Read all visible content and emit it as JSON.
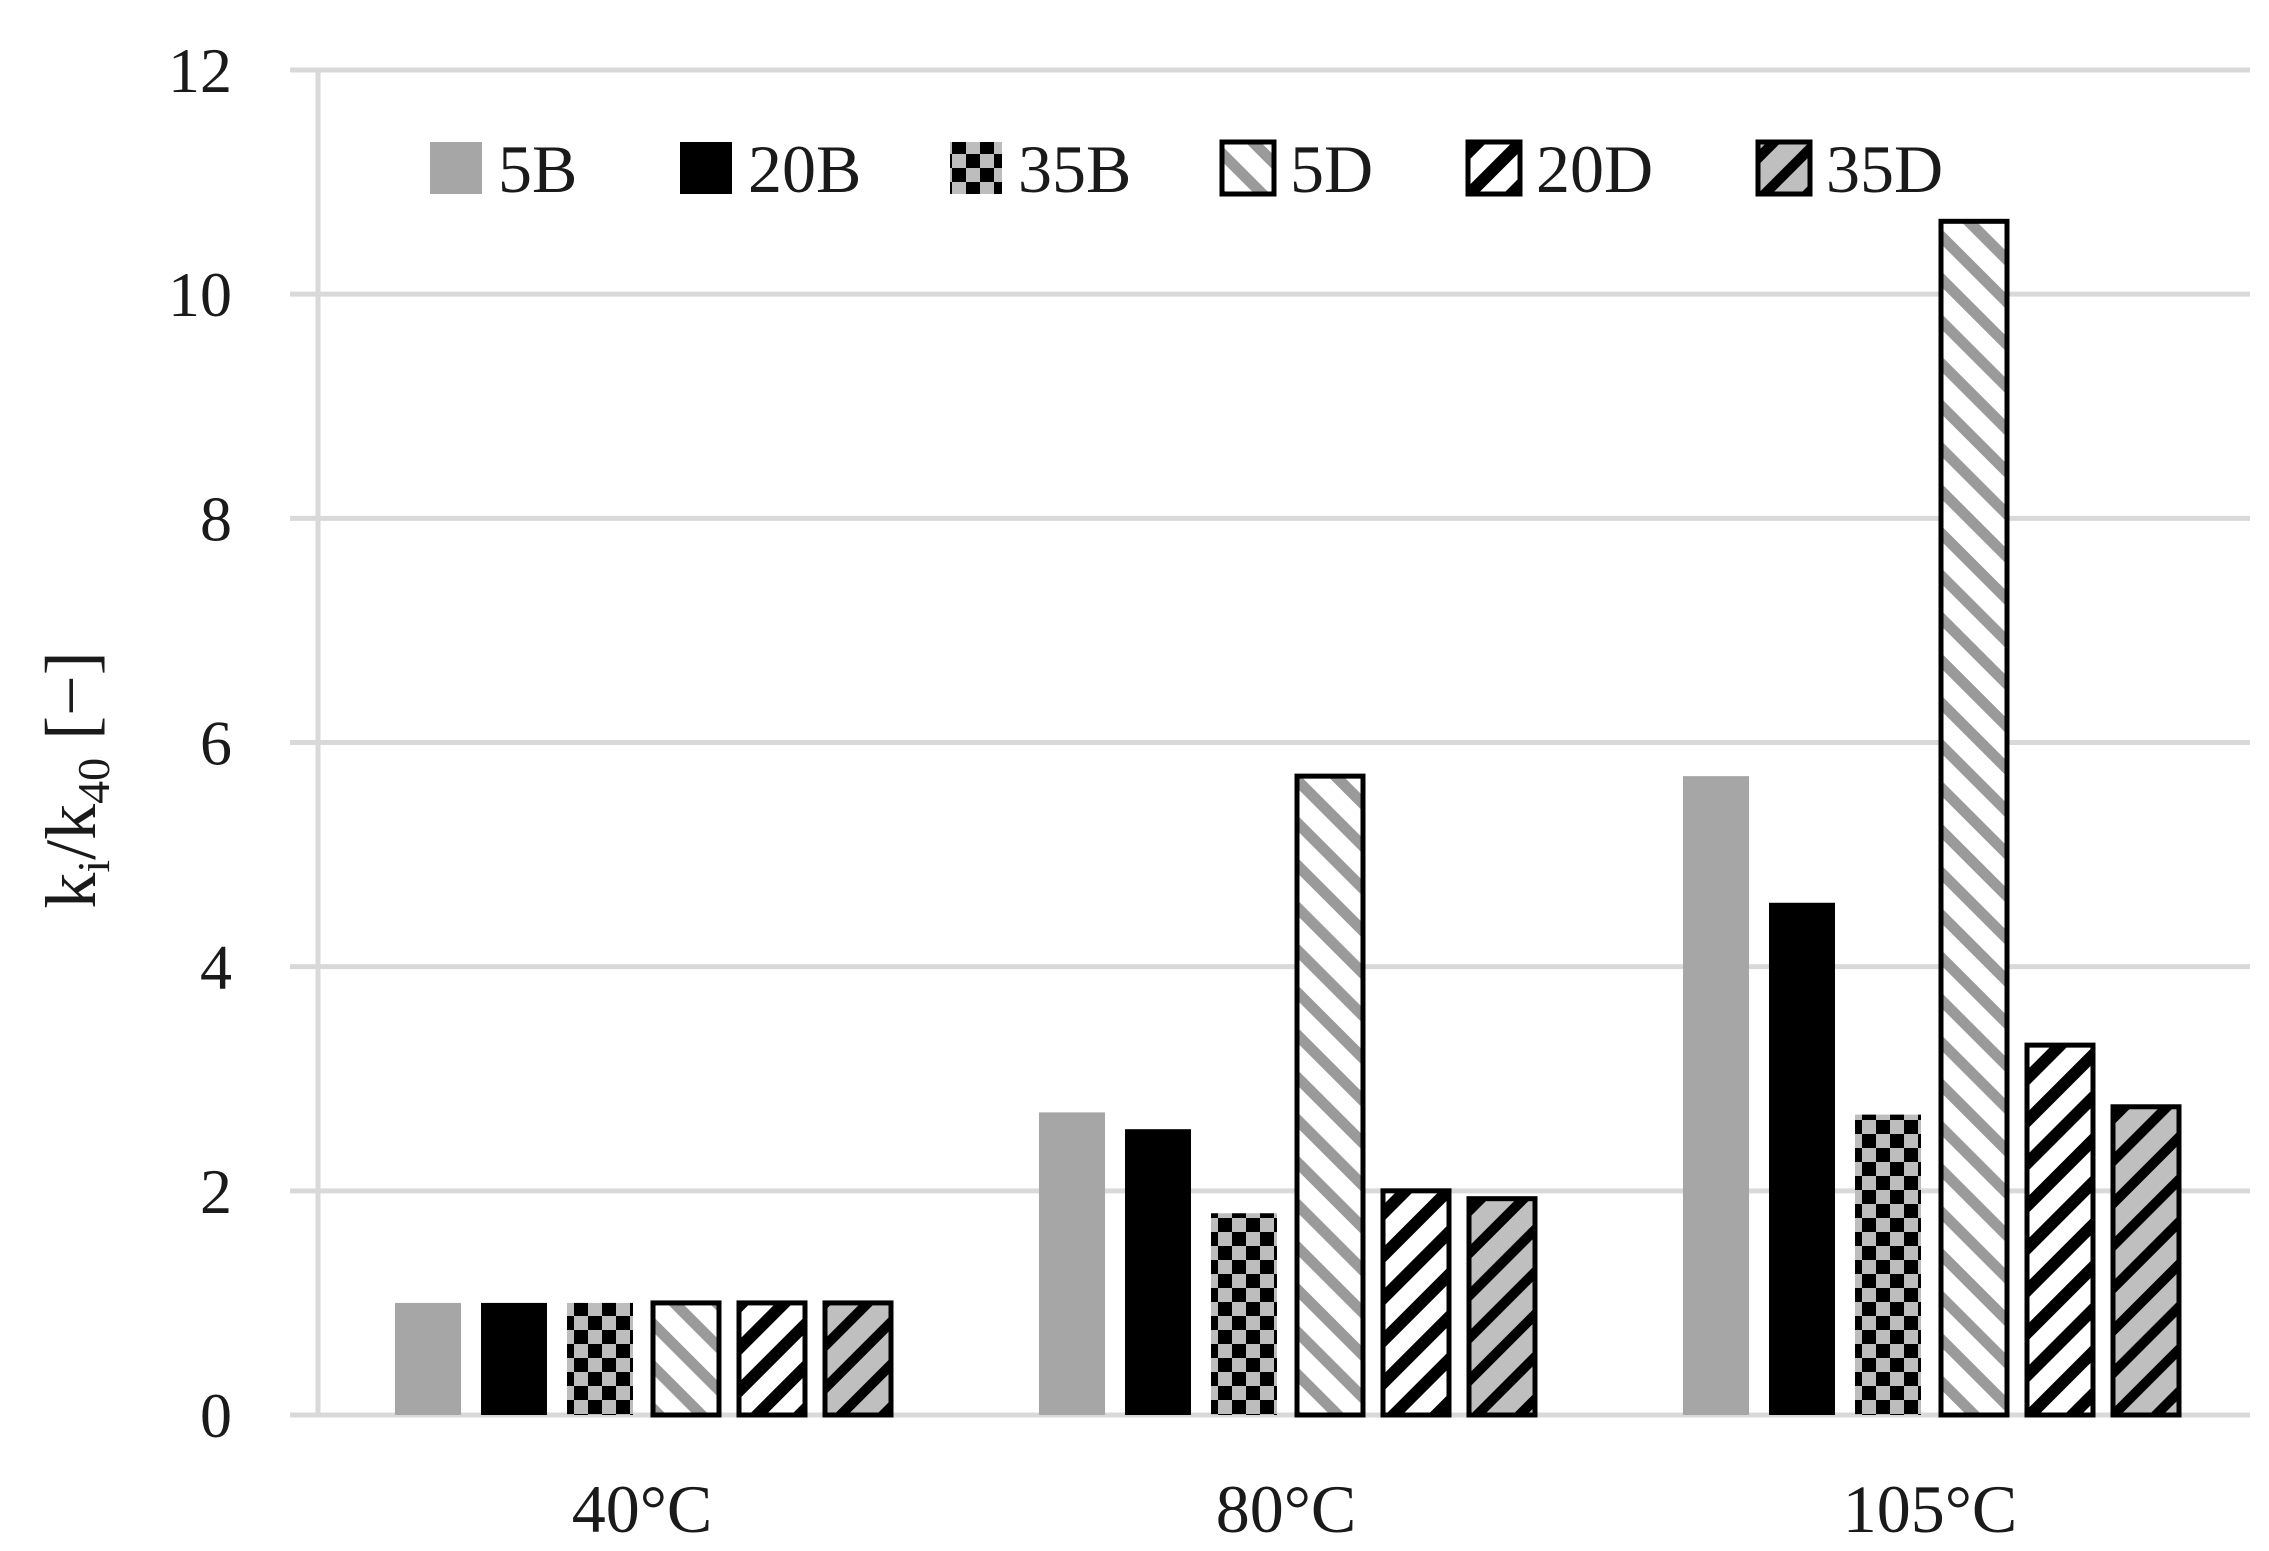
{
  "chart_data": {
    "type": "bar",
    "title": "",
    "xlabel": "",
    "ylabel": {
      "base": "k",
      "sub_i": "i",
      "slash": "/k",
      "sub_40": "40",
      "unit": " [−]"
    },
    "ylim": [
      0,
      12
    ],
    "yticks": [
      "0",
      "2",
      "4",
      "6",
      "8",
      "10",
      "12"
    ],
    "grid": true,
    "legend_position": "top",
    "categories": [
      "40°C",
      "80°C",
      "105°C"
    ],
    "series": [
      {
        "name": "5B",
        "values": [
          1.0,
          2.7,
          5.7
        ],
        "fill": "solid-gray",
        "color": "#a6a6a6"
      },
      {
        "name": "20B",
        "values": [
          1.0,
          2.55,
          4.57
        ],
        "fill": "solid-black",
        "color": "#000000"
      },
      {
        "name": "35B",
        "values": [
          1.0,
          1.8,
          2.68
        ],
        "fill": "checker",
        "color": "#000000"
      },
      {
        "name": "5D",
        "values": [
          1.0,
          5.7,
          10.65
        ],
        "fill": "diag-gray",
        "color": "#9a9a9a"
      },
      {
        "name": "20D",
        "values": [
          1.0,
          2.0,
          3.3
        ],
        "fill": "diag-black",
        "color": "#000000"
      },
      {
        "name": "35D",
        "values": [
          1.0,
          1.93,
          2.75
        ],
        "fill": "diag-black-gray",
        "color": "#bfbfbf"
      }
    ]
  }
}
